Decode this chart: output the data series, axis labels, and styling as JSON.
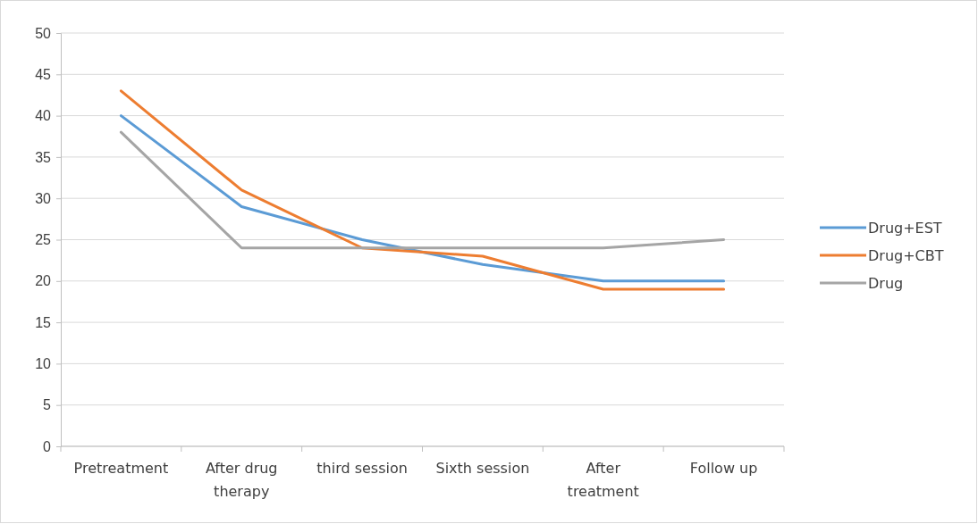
{
  "chart_data": {
    "type": "line",
    "categories": [
      "Pretreatment",
      "After drug therapy",
      "third session",
      "Sixth session",
      "After treatment",
      "Follow up"
    ],
    "series": [
      {
        "name": "Drug+EST",
        "color": "#5b9bd5",
        "values": [
          40,
          29,
          25,
          22,
          20,
          20
        ]
      },
      {
        "name": "Drug+CBT",
        "color": "#ed7d31",
        "values": [
          43,
          31,
          24,
          23,
          19,
          19
        ]
      },
      {
        "name": "Drug",
        "color": "#a5a5a5",
        "values": [
          38,
          24,
          24,
          24,
          24,
          25
        ]
      }
    ],
    "ylim": [
      0,
      50
    ],
    "yticks": [
      0,
      5,
      10,
      15,
      20,
      25,
      30,
      35,
      40,
      45,
      50
    ],
    "grid": "y",
    "legend": "right",
    "marker": "none",
    "line_style": "solid"
  }
}
